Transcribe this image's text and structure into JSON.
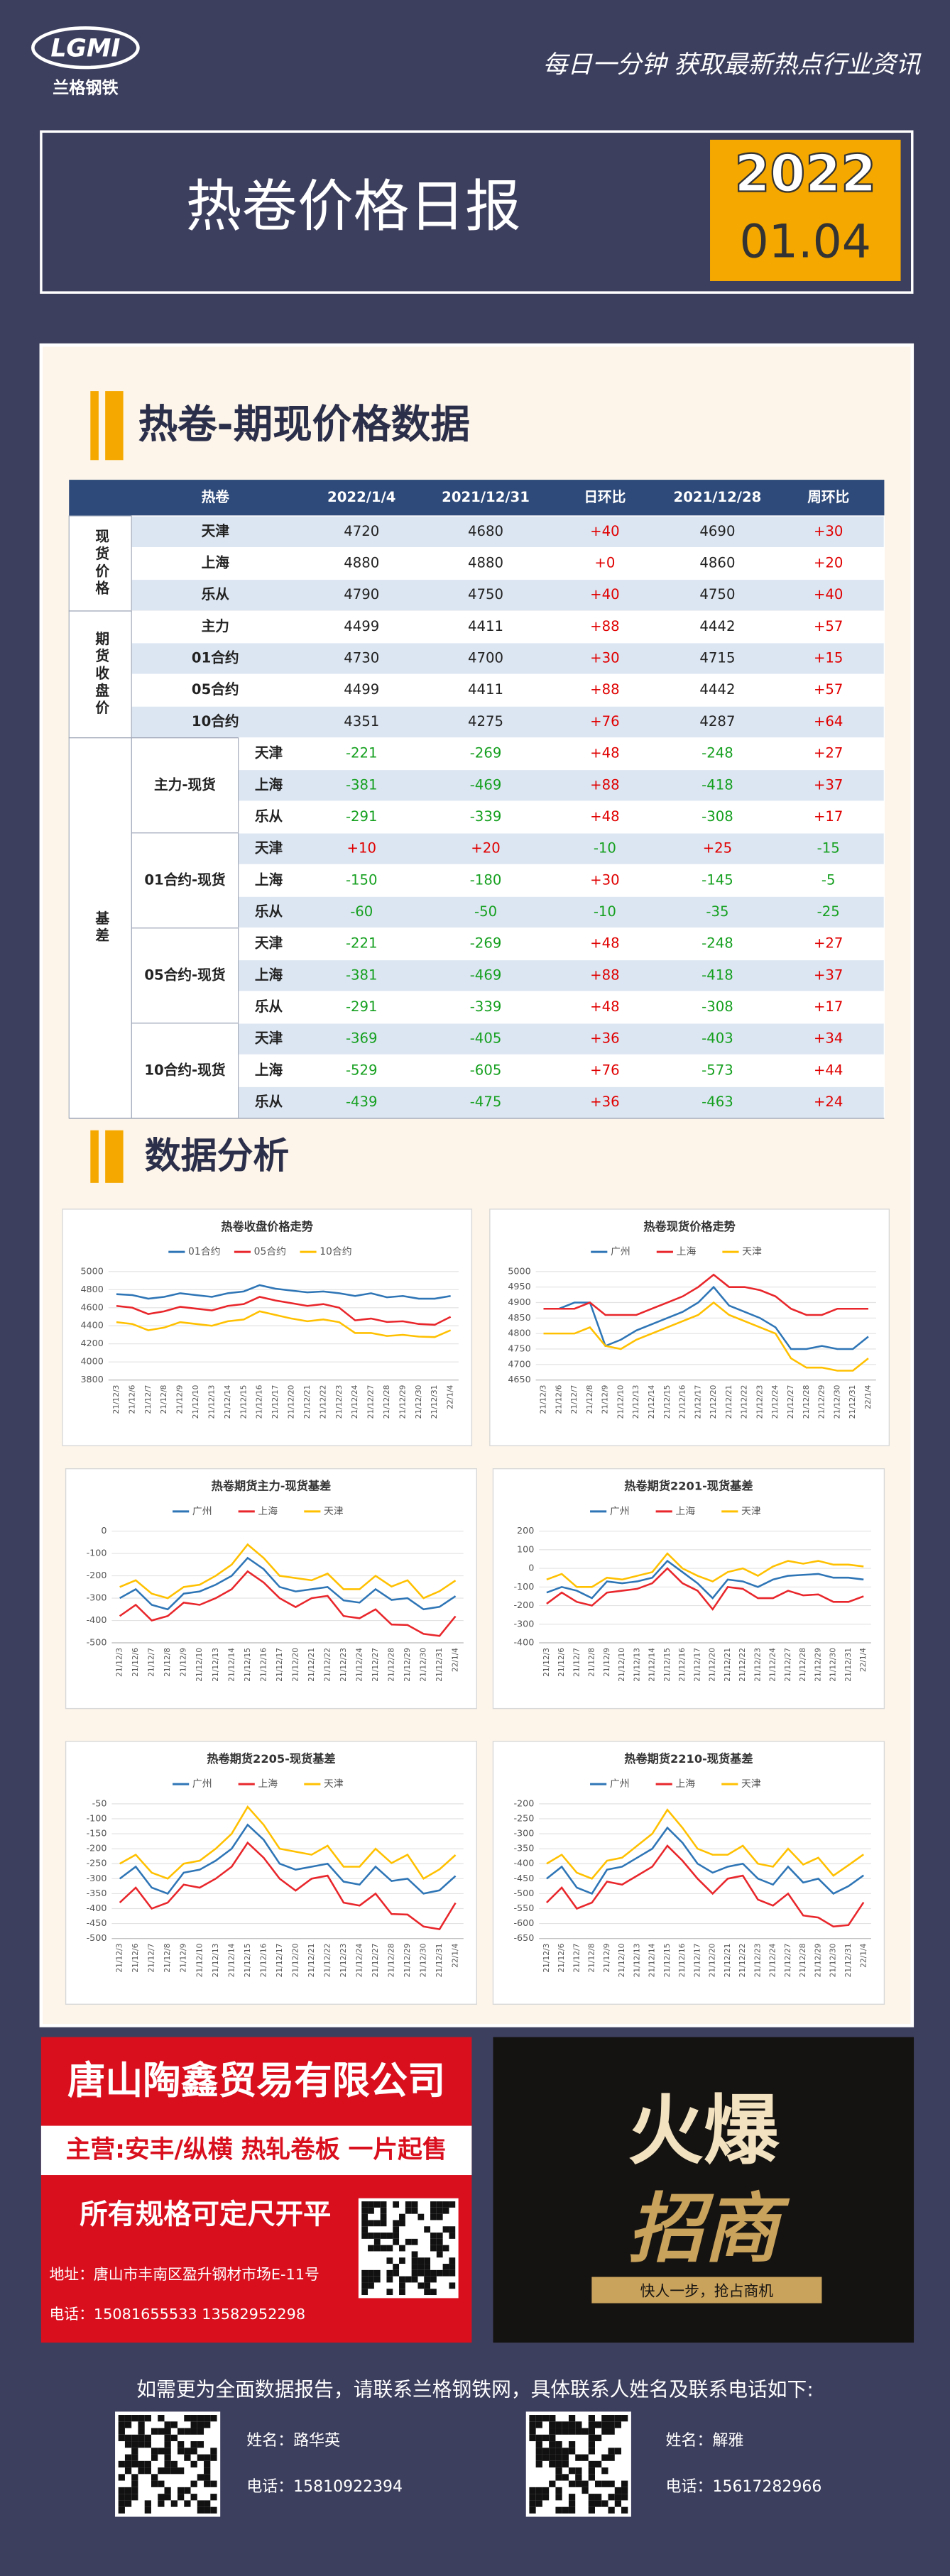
{
  "header": {
    "logo": "LGMI",
    "logo_sub": "兰格钢铁",
    "slogan": "每日一分钟  获取最新热点行业资讯",
    "title": "热卷价格日报",
    "year": "2022",
    "date": "01.04"
  },
  "sections": [
    "热卷-期现价格数据",
    "数据分析"
  ],
  "table": {
    "headers": [
      "热卷",
      "2022/1/4",
      "2021/12/31",
      "日环比",
      "2021/12/28",
      "周环比"
    ],
    "groups": [
      {
        "label": "现货价格",
        "rows": [
          {
            "name": "天津",
            "cells": [
              "4720",
              "4680",
              "+40",
              "4690",
              "+30"
            ]
          },
          {
            "name": "上海",
            "cells": [
              "4880",
              "4880",
              "+0",
              "4860",
              "+20"
            ]
          },
          {
            "name": "乐从",
            "cells": [
              "4790",
              "4750",
              "+40",
              "4750",
              "+40"
            ]
          }
        ]
      },
      {
        "label": "期货收盘价",
        "rows": [
          {
            "name": "主力",
            "cells": [
              "4499",
              "4411",
              "+88",
              "4442",
              "+57"
            ]
          },
          {
            "name": "01合约",
            "cells": [
              "4730",
              "4700",
              "+30",
              "4715",
              "+15"
            ]
          },
          {
            "name": "05合约",
            "cells": [
              "4499",
              "4411",
              "+88",
              "4442",
              "+57"
            ]
          },
          {
            "name": "10合约",
            "cells": [
              "4351",
              "4275",
              "+76",
              "4287",
              "+64"
            ]
          }
        ]
      },
      {
        "label": "基差",
        "subgroups": [
          {
            "label": "主力-现货",
            "rows": [
              {
                "name": "天津",
                "cells": [
                  "-221",
                  "-269",
                  "+48",
                  "-248",
                  "+27"
                ]
              },
              {
                "name": "上海",
                "cells": [
                  "-381",
                  "-469",
                  "+88",
                  "-418",
                  "+37"
                ]
              },
              {
                "name": "乐从",
                "cells": [
                  "-291",
                  "-339",
                  "+48",
                  "-308",
                  "+17"
                ]
              }
            ]
          },
          {
            "label": "01合约-现货",
            "rows": [
              {
                "name": "天津",
                "cells": [
                  "+10",
                  "+20",
                  "-10",
                  "+25",
                  "-15"
                ]
              },
              {
                "name": "上海",
                "cells": [
                  "-150",
                  "-180",
                  "+30",
                  "-145",
                  "-5"
                ]
              },
              {
                "name": "乐从",
                "cells": [
                  "-60",
                  "-50",
                  "-10",
                  "-35",
                  "-25"
                ]
              }
            ]
          },
          {
            "label": "05合约-现货",
            "rows": [
              {
                "name": "天津",
                "cells": [
                  "-221",
                  "-269",
                  "+48",
                  "-248",
                  "+27"
                ]
              },
              {
                "name": "上海",
                "cells": [
                  "-381",
                  "-469",
                  "+88",
                  "-418",
                  "+37"
                ]
              },
              {
                "name": "乐从",
                "cells": [
                  "-291",
                  "-339",
                  "+48",
                  "-308",
                  "+17"
                ]
              }
            ]
          },
          {
            "label": "10合约-现货",
            "rows": [
              {
                "name": "天津",
                "cells": [
                  "-369",
                  "-405",
                  "+36",
                  "-403",
                  "+34"
                ]
              },
              {
                "name": "上海",
                "cells": [
                  "-529",
                  "-605",
                  "+76",
                  "-573",
                  "+44"
                ]
              },
              {
                "name": "乐从",
                "cells": [
                  "-439",
                  "-475",
                  "+36",
                  "-463",
                  "+24"
                ]
              }
            ]
          }
        ]
      }
    ]
  },
  "chart_data": [
    {
      "type": "line",
      "title": "热卷收盘价格走势",
      "x": [
        "21/12/3",
        "21/12/6",
        "21/12/7",
        "21/12/8",
        "21/12/9",
        "21/12/10",
        "21/12/13",
        "21/12/14",
        "21/12/15",
        "21/12/16",
        "21/12/17",
        "21/12/20",
        "21/12/21",
        "21/12/22",
        "21/12/23",
        "21/12/24",
        "21/12/27",
        "21/12/28",
        "21/12/29",
        "21/12/30",
        "21/12/31",
        "22/1/4"
      ],
      "ylim": [
        3800,
        5000
      ],
      "yticks": [
        3800,
        4000,
        4200,
        4400,
        4600,
        4800,
        5000
      ],
      "grid": true,
      "series": [
        {
          "name": "01合约",
          "color": "#2e75b6",
          "values": [
            4750,
            4740,
            4700,
            4720,
            4760,
            4740,
            4720,
            4760,
            4780,
            4850,
            4810,
            4790,
            4770,
            4780,
            4760,
            4730,
            4760,
            4715,
            4730,
            4700,
            4700,
            4730
          ]
        },
        {
          "name": "05合约",
          "color": "#e8262b",
          "values": [
            4620,
            4600,
            4530,
            4560,
            4610,
            4590,
            4570,
            4620,
            4640,
            4720,
            4680,
            4650,
            4620,
            4640,
            4600,
            4460,
            4480,
            4442,
            4450,
            4420,
            4411,
            4499
          ]
        },
        {
          "name": "10合约",
          "color": "#ffc000",
          "values": [
            4440,
            4420,
            4350,
            4380,
            4440,
            4420,
            4400,
            4450,
            4470,
            4560,
            4520,
            4480,
            4450,
            4470,
            4440,
            4320,
            4320,
            4287,
            4300,
            4280,
            4275,
            4351
          ]
        }
      ]
    },
    {
      "type": "line",
      "title": "热卷现货价格走势",
      "x": [
        "21/12/3",
        "21/12/6",
        "21/12/7",
        "21/12/8",
        "21/12/9",
        "21/12/10",
        "21/12/13",
        "21/12/14",
        "21/12/15",
        "21/12/16",
        "21/12/17",
        "21/12/20",
        "21/12/21",
        "21/12/22",
        "21/12/23",
        "21/12/24",
        "21/12/27",
        "21/12/28",
        "21/12/29",
        "21/12/30",
        "21/12/31",
        "22/1/4"
      ],
      "ylim": [
        4650,
        5000
      ],
      "yticks": [
        4650,
        4700,
        4750,
        4800,
        4850,
        4900,
        4950,
        5000
      ],
      "grid": true,
      "series": [
        {
          "name": "广州",
          "color": "#2e75b6",
          "values": [
            4880,
            4880,
            4900,
            4900,
            4760,
            4780,
            4810,
            4830,
            4850,
            4870,
            4900,
            4950,
            4890,
            4870,
            4850,
            4820,
            4750,
            4750,
            4760,
            4750,
            4750,
            4790
          ]
        },
        {
          "name": "上海",
          "color": "#e8262b",
          "values": [
            4880,
            4880,
            4880,
            4900,
            4860,
            4860,
            4860,
            4880,
            4900,
            4920,
            4950,
            4990,
            4950,
            4950,
            4940,
            4920,
            4880,
            4860,
            4860,
            4880,
            4880,
            4880
          ]
        },
        {
          "name": "天津",
          "color": "#ffc000",
          "values": [
            4800,
            4800,
            4800,
            4820,
            4760,
            4750,
            4780,
            4800,
            4820,
            4840,
            4860,
            4900,
            4860,
            4840,
            4820,
            4800,
            4720,
            4690,
            4690,
            4680,
            4680,
            4720
          ]
        }
      ]
    },
    {
      "type": "line",
      "title": "热卷期货主力-现货基差",
      "x": [
        "21/12/3",
        "21/12/6",
        "21/12/7",
        "21/12/8",
        "21/12/9",
        "21/12/10",
        "21/12/13",
        "21/12/14",
        "21/12/15",
        "21/12/16",
        "21/12/17",
        "21/12/20",
        "21/12/21",
        "21/12/22",
        "21/12/23",
        "21/12/24",
        "21/12/27",
        "21/12/28",
        "21/12/29",
        "21/12/30",
        "21/12/31",
        "22/1/4"
      ],
      "ylim": [
        -500,
        0
      ],
      "yticks": [
        -500,
        -400,
        -300,
        -200,
        -100,
        0
      ],
      "grid": true,
      "series": [
        {
          "name": "广州",
          "color": "#2e75b6",
          "values": [
            -300,
            -260,
            -330,
            -350,
            -280,
            -270,
            -240,
            -200,
            -120,
            -170,
            -250,
            -270,
            -260,
            -250,
            -310,
            -320,
            -260,
            -308,
            -300,
            -350,
            -339,
            -291
          ]
        },
        {
          "name": "上海",
          "color": "#e8262b",
          "values": [
            -380,
            -330,
            -400,
            -380,
            -320,
            -330,
            -300,
            -260,
            -180,
            -230,
            -300,
            -340,
            -300,
            -290,
            -380,
            -390,
            -350,
            -418,
            -420,
            -460,
            -469,
            -381
          ]
        },
        {
          "name": "天津",
          "color": "#ffc000",
          "values": [
            -250,
            -220,
            -280,
            -300,
            -250,
            -240,
            -200,
            -150,
            -60,
            -120,
            -200,
            -210,
            -220,
            -190,
            -260,
            -260,
            -200,
            -248,
            -220,
            -300,
            -269,
            -221
          ]
        }
      ]
    },
    {
      "type": "line",
      "title": "热卷期货2201-现货基差",
      "x": [
        "21/12/3",
        "21/12/6",
        "21/12/7",
        "21/12/8",
        "21/12/9",
        "21/12/10",
        "21/12/13",
        "21/12/14",
        "21/12/15",
        "21/12/16",
        "21/12/17",
        "21/12/20",
        "21/12/21",
        "21/12/22",
        "21/12/23",
        "21/12/24",
        "21/12/27",
        "21/12/28",
        "21/12/29",
        "21/12/30",
        "21/12/31",
        "22/1/4"
      ],
      "ylim": [
        -400,
        200
      ],
      "yticks": [
        -400,
        -300,
        -200,
        -100,
        0,
        100,
        200
      ],
      "grid": true,
      "series": [
        {
          "name": "广州",
          "color": "#2e75b6",
          "values": [
            -130,
            -100,
            -120,
            -160,
            -70,
            -80,
            -70,
            -50,
            40,
            -20,
            -80,
            -160,
            -60,
            -70,
            -100,
            -60,
            -40,
            -35,
            -30,
            -50,
            -50,
            -60
          ]
        },
        {
          "name": "上海",
          "color": "#e8262b",
          "values": [
            -190,
            -130,
            -180,
            -200,
            -130,
            -120,
            -110,
            -80,
            0,
            -80,
            -120,
            -220,
            -100,
            -110,
            -160,
            -160,
            -120,
            -145,
            -140,
            -180,
            -180,
            -150
          ]
        },
        {
          "name": "天津",
          "color": "#ffc000",
          "values": [
            -60,
            -30,
            -100,
            -100,
            -50,
            -60,
            -40,
            -20,
            80,
            0,
            -40,
            -70,
            -20,
            0,
            -40,
            10,
            40,
            25,
            40,
            20,
            20,
            10
          ]
        }
      ]
    },
    {
      "type": "line",
      "title": "热卷期货2205-现货基差",
      "x": [
        "21/12/3",
        "21/12/6",
        "21/12/7",
        "21/12/8",
        "21/12/9",
        "21/12/10",
        "21/12/13",
        "21/12/14",
        "21/12/15",
        "21/12/16",
        "21/12/17",
        "21/12/20",
        "21/12/21",
        "21/12/22",
        "21/12/23",
        "21/12/24",
        "21/12/27",
        "21/12/28",
        "21/12/29",
        "21/12/30",
        "21/12/31",
        "22/1/4"
      ],
      "ylim": [
        -500,
        -50
      ],
      "yticks": [
        -500,
        -450,
        -400,
        -350,
        -300,
        -250,
        -200,
        -150,
        -100,
        -50
      ],
      "grid": true,
      "series": [
        {
          "name": "广州",
          "color": "#2e75b6",
          "values": [
            -300,
            -260,
            -330,
            -350,
            -280,
            -270,
            -240,
            -200,
            -120,
            -170,
            -250,
            -270,
            -260,
            -250,
            -310,
            -320,
            -260,
            -308,
            -300,
            -350,
            -339,
            -291
          ]
        },
        {
          "name": "上海",
          "color": "#e8262b",
          "values": [
            -380,
            -330,
            -400,
            -380,
            -320,
            -330,
            -300,
            -260,
            -180,
            -230,
            -300,
            -340,
            -300,
            -290,
            -380,
            -390,
            -350,
            -418,
            -420,
            -460,
            -469,
            -381
          ]
        },
        {
          "name": "天津",
          "color": "#ffc000",
          "values": [
            -250,
            -220,
            -280,
            -300,
            -250,
            -240,
            -200,
            -150,
            -60,
            -120,
            -200,
            -210,
            -220,
            -190,
            -260,
            -260,
            -200,
            -248,
            -220,
            -300,
            -269,
            -221
          ]
        }
      ]
    },
    {
      "type": "line",
      "title": "热卷期货2210-现货基差",
      "x": [
        "21/12/3",
        "21/12/6",
        "21/12/7",
        "21/12/8",
        "21/12/9",
        "21/12/10",
        "21/12/13",
        "21/12/14",
        "21/12/15",
        "21/12/16",
        "21/12/17",
        "21/12/20",
        "21/12/21",
        "21/12/22",
        "21/12/23",
        "21/12/24",
        "21/12/27",
        "21/12/28",
        "21/12/29",
        "21/12/30",
        "21/12/31",
        "22/1/4"
      ],
      "ylim": [
        -650,
        -200
      ],
      "yticks": [
        -650,
        -600,
        -550,
        -500,
        -450,
        -400,
        -350,
        -300,
        -250,
        -200
      ],
      "grid": true,
      "series": [
        {
          "name": "广州",
          "color": "#2e75b6",
          "values": [
            -450,
            -410,
            -480,
            -500,
            -420,
            -410,
            -380,
            -350,
            -280,
            -330,
            -400,
            -430,
            -410,
            -400,
            -450,
            -470,
            -410,
            -463,
            -450,
            -500,
            -475,
            -439
          ]
        },
        {
          "name": "上海",
          "color": "#e8262b",
          "values": [
            -530,
            -480,
            -550,
            -530,
            -460,
            -470,
            -440,
            -410,
            -340,
            -390,
            -450,
            -500,
            -450,
            -440,
            -520,
            -540,
            -500,
            -573,
            -580,
            -610,
            -605,
            -529
          ]
        },
        {
          "name": "天津",
          "color": "#ffc000",
          "values": [
            -400,
            -370,
            -430,
            -450,
            -390,
            -380,
            -340,
            -300,
            -220,
            -280,
            -350,
            -370,
            -370,
            -340,
            -400,
            -410,
            -350,
            -403,
            -380,
            -440,
            -405,
            -369
          ]
        }
      ]
    }
  ],
  "ads": {
    "left": {
      "company": "唐山陶鑫贸易有限公司",
      "main": "主营:安丰/纵横 热轧卷板 一片起售",
      "note": "所有规格可定尺开平",
      "address": "地址：唐山市丰南区盈升钢材市场E-11号",
      "phone": "电话：15081655533   13582952298"
    },
    "right": {
      "big1": "火爆",
      "big2": "招商",
      "slogan": "快人一步，抢占商机"
    }
  },
  "footer": {
    "note": "如需更为全面数据报告，请联系兰格钢铁网，具体联系人姓名及联系电话如下:",
    "contacts": [
      {
        "name": "姓名：路华英",
        "phone": "电话：15810922394"
      },
      {
        "name": "姓名：解雅",
        "phone": "电话：15617282966"
      }
    ]
  }
}
